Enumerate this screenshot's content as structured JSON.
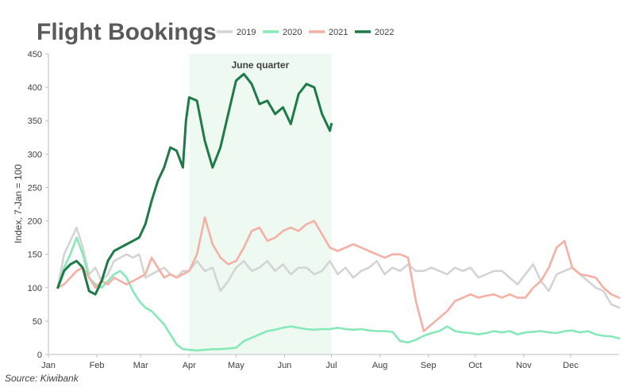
{
  "chart_data": {
    "type": "line",
    "title": "Flight Bookings",
    "ylabel": "Index, 7-Jan = 100",
    "xlabel": "",
    "source": "Source: Kiwibank",
    "ylim": [
      0,
      450
    ],
    "yticks": [
      0,
      50,
      100,
      150,
      200,
      250,
      300,
      350,
      400,
      450
    ],
    "xlim": [
      0,
      365
    ],
    "x_ticks": [
      {
        "label": "Jan",
        "day": 0
      },
      {
        "label": "Feb",
        "day": 31
      },
      {
        "label": "Mar",
        "day": 59
      },
      {
        "label": "Apr",
        "day": 90
      },
      {
        "label": "May",
        "day": 120
      },
      {
        "label": "Jun",
        "day": 151
      },
      {
        "label": "Jul",
        "day": 181
      },
      {
        "label": "Aug",
        "day": 212
      },
      {
        "label": "Sep",
        "day": 243
      },
      {
        "label": "Oct",
        "day": 273
      },
      {
        "label": "Nov",
        "day": 304
      },
      {
        "label": "Dec",
        "day": 334
      }
    ],
    "x_unit": "day of year",
    "grid": false,
    "legend_position": "top",
    "shaded_region": {
      "label": "June quarter",
      "x_start": 90,
      "x_end": 181,
      "color": "#eefaf1"
    },
    "series": [
      {
        "name": "2019",
        "color": "#d4d4d4",
        "x": [
          6,
          10,
          14,
          18,
          22,
          26,
          30,
          34,
          38,
          42,
          46,
          50,
          54,
          58,
          62,
          66,
          70,
          74,
          78,
          82,
          86,
          90,
          95,
          100,
          105,
          110,
          115,
          120,
          125,
          130,
          135,
          140,
          145,
          150,
          155,
          160,
          165,
          170,
          175,
          180,
          185,
          190,
          195,
          200,
          205,
          210,
          215,
          220,
          225,
          230,
          235,
          240,
          245,
          250,
          255,
          260,
          265,
          270,
          275,
          280,
          285,
          290,
          295,
          300,
          305,
          310,
          315,
          320,
          325,
          330,
          335,
          340,
          345,
          350,
          355,
          360,
          365
        ],
        "y": [
          100,
          150,
          170,
          190,
          160,
          120,
          130,
          110,
          120,
          140,
          145,
          150,
          145,
          150,
          115,
          120,
          125,
          130,
          120,
          115,
          125,
          125,
          140,
          125,
          130,
          95,
          110,
          130,
          140,
          125,
          130,
          140,
          125,
          135,
          120,
          130,
          130,
          120,
          125,
          140,
          120,
          130,
          115,
          125,
          130,
          140,
          120,
          130,
          125,
          135,
          125,
          125,
          130,
          125,
          120,
          130,
          125,
          130,
          115,
          120,
          125,
          125,
          115,
          105,
          120,
          135,
          110,
          95,
          120,
          125,
          130,
          120,
          110,
          100,
          95,
          75,
          70
        ]
      },
      {
        "name": "2020",
        "color": "#87e8b8",
        "x": [
          6,
          10,
          14,
          18,
          22,
          26,
          30,
          34,
          38,
          42,
          46,
          50,
          54,
          58,
          62,
          66,
          70,
          74,
          78,
          82,
          86,
          90,
          95,
          100,
          105,
          110,
          115,
          120,
          125,
          130,
          135,
          140,
          145,
          150,
          155,
          160,
          165,
          170,
          175,
          180,
          185,
          190,
          195,
          200,
          205,
          210,
          215,
          220,
          225,
          230,
          235,
          240,
          245,
          250,
          255,
          260,
          265,
          270,
          275,
          280,
          285,
          290,
          295,
          300,
          305,
          310,
          315,
          320,
          325,
          330,
          335,
          340,
          345,
          350,
          355,
          360,
          365
        ],
        "y": [
          100,
          130,
          150,
          175,
          150,
          115,
          105,
          100,
          110,
          120,
          125,
          115,
          95,
          80,
          70,
          65,
          55,
          45,
          30,
          15,
          8,
          7,
          6,
          7,
          8,
          8,
          9,
          10,
          20,
          25,
          30,
          35,
          37,
          40,
          42,
          40,
          38,
          37,
          38,
          38,
          40,
          38,
          37,
          38,
          36,
          35,
          35,
          34,
          20,
          18,
          22,
          28,
          32,
          35,
          42,
          35,
          33,
          32,
          30,
          32,
          35,
          33,
          35,
          30,
          33,
          34,
          35,
          33,
          32,
          35,
          36,
          33,
          35,
          30,
          28,
          27,
          24
        ]
      },
      {
        "name": "2021",
        "color": "#f5b0a5",
        "x": [
          6,
          10,
          14,
          18,
          22,
          26,
          30,
          34,
          38,
          42,
          46,
          50,
          54,
          58,
          62,
          66,
          70,
          74,
          78,
          82,
          86,
          90,
          95,
          100,
          105,
          110,
          115,
          120,
          125,
          130,
          135,
          140,
          145,
          150,
          155,
          160,
          165,
          170,
          175,
          180,
          185,
          190,
          195,
          200,
          205,
          210,
          215,
          220,
          225,
          230,
          235,
          240,
          245,
          250,
          255,
          260,
          265,
          270,
          275,
          280,
          285,
          290,
          295,
          300,
          305,
          310,
          315,
          320,
          325,
          330,
          335,
          340,
          345,
          350,
          355,
          360,
          365
        ],
        "y": [
          100,
          105,
          115,
          125,
          130,
          115,
          100,
          110,
          105,
          115,
          110,
          105,
          110,
          115,
          120,
          145,
          130,
          115,
          120,
          115,
          120,
          125,
          150,
          205,
          165,
          145,
          135,
          140,
          160,
          185,
          190,
          170,
          175,
          185,
          190,
          185,
          195,
          200,
          180,
          160,
          155,
          160,
          165,
          160,
          155,
          150,
          145,
          150,
          150,
          145,
          80,
          35,
          45,
          55,
          65,
          80,
          85,
          90,
          85,
          88,
          90,
          85,
          90,
          85,
          85,
          100,
          110,
          130,
          160,
          170,
          130,
          120,
          118,
          115,
          100,
          90,
          85
        ]
      },
      {
        "name": "2022",
        "color": "#1e7a46",
        "x": [
          6,
          10,
          14,
          18,
          22,
          26,
          30,
          34,
          38,
          42,
          46,
          50,
          54,
          58,
          62,
          66,
          70,
          74,
          78,
          82,
          86,
          88,
          90,
          95,
          100,
          105,
          110,
          115,
          120,
          125,
          130,
          135,
          140,
          145,
          150,
          155,
          160,
          165,
          170,
          175,
          178,
          180,
          181
        ],
        "y": [
          100,
          125,
          135,
          140,
          130,
          95,
          90,
          110,
          140,
          155,
          160,
          165,
          170,
          175,
          195,
          230,
          260,
          280,
          310,
          305,
          280,
          350,
          385,
          380,
          320,
          280,
          310,
          360,
          410,
          420,
          405,
          375,
          380,
          360,
          370,
          345,
          390,
          405,
          400,
          360,
          345,
          335,
          345
        ]
      }
    ]
  }
}
